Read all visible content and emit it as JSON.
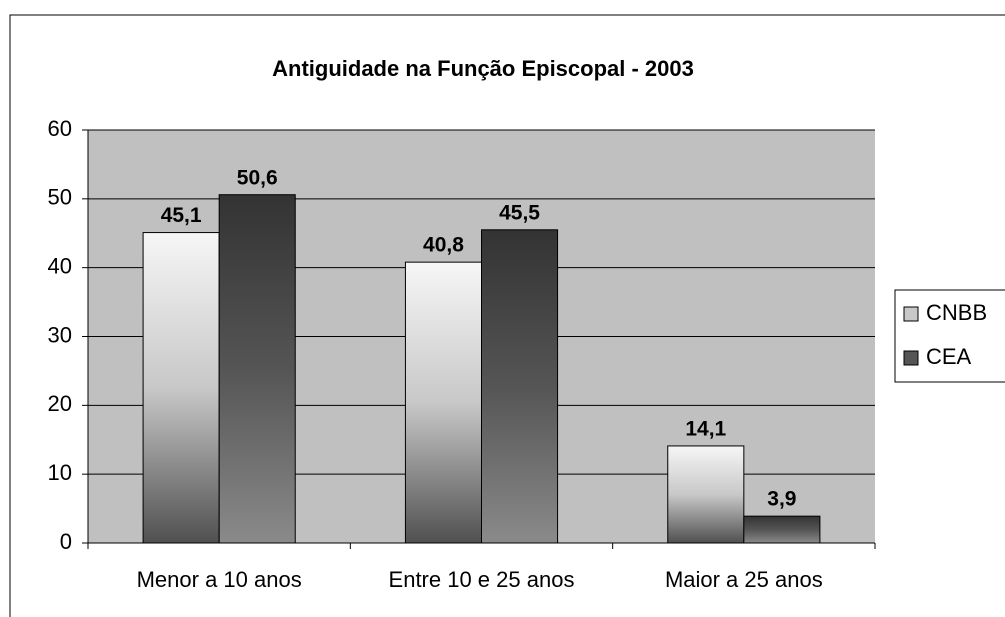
{
  "chart_data": {
    "type": "bar",
    "title": "Antiguidade na Função Episcopal - 2003",
    "categories": [
      "Menor a 10 anos",
      "Entre 10 e 25 anos",
      "Maior a 25 anos"
    ],
    "series": [
      {
        "name": "CNBB",
        "color": "#c8c8c8",
        "values": [
          45.1,
          40.8,
          14.1
        ],
        "value_labels": [
          "45,1",
          "40,8",
          "14,1"
        ]
      },
      {
        "name": "CEA",
        "color": "#555555",
        "values": [
          50.6,
          45.5,
          3.9
        ],
        "value_labels": [
          "50,6",
          "45,5",
          "3,9"
        ]
      }
    ],
    "ylim": [
      0,
      60
    ],
    "yticks": [
      0,
      10,
      20,
      30,
      40,
      50,
      60
    ],
    "grid": true,
    "legend": "right"
  }
}
